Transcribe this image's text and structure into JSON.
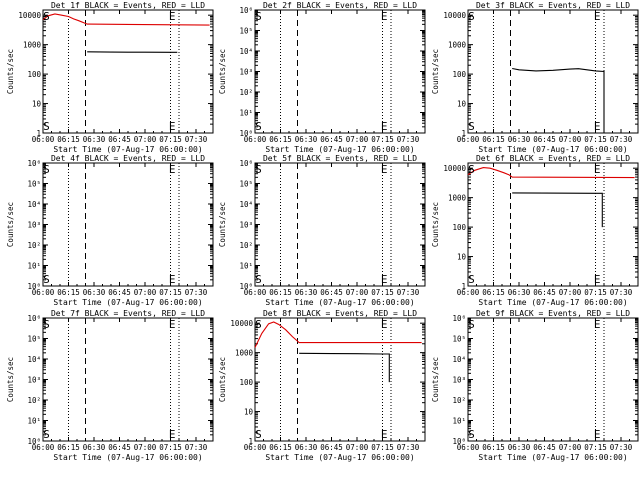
{
  "colors": {
    "events": "#000000",
    "lld": "#dd0000",
    "axis": "#000000",
    "background": "#ffffff"
  },
  "chart_data": [
    {
      "type": "line",
      "title": "Det 1f BLACK = Events, RED = LLD",
      "xlabel": "Start Time (07-Aug-17 06:00:00)",
      "ylabel": "Counts/sec",
      "xlim": [
        "06:00",
        "07:40"
      ],
      "x_ticks": [
        "06:00",
        "06:15",
        "06:30",
        "06:45",
        "07:00",
        "07:15",
        "07:30"
      ],
      "y_scale": "log",
      "ylim": [
        1,
        15000
      ],
      "y_ticks": [
        "1",
        "10",
        "100",
        "1000",
        "10000"
      ],
      "markers": [
        {
          "label": "S",
          "x": "06:02"
        },
        {
          "label": "E",
          "x": "07:16"
        }
      ],
      "series": [
        {
          "name": "LLD",
          "color": "red",
          "points": [
            [
              "06:00",
              7000
            ],
            [
              "06:03",
              9500
            ],
            [
              "06:07",
              11000
            ],
            [
              "06:11",
              10000
            ],
            [
              "06:15",
              9000
            ],
            [
              "06:18",
              7500
            ],
            [
              "06:21",
              6500
            ],
            [
              "06:24",
              5500
            ],
            [
              "06:26",
              5000
            ],
            [
              "07:38",
              4600
            ]
          ]
        },
        {
          "name": "Events",
          "color": "black",
          "points": [
            [
              "06:26",
              570
            ],
            [
              "06:40",
              560
            ],
            [
              "07:00",
              555
            ],
            [
              "07:15",
              550
            ],
            [
              "07:19",
              548
            ]
          ]
        }
      ]
    },
    {
      "type": "line",
      "title": "Det 2f BLACK = Events, RED = LLD",
      "xlabel": "Start Time (07-Aug-17 06:00:00)",
      "ylabel": "Counts/sec",
      "xlim": [
        "06:00",
        "07:40"
      ],
      "x_ticks": [
        "06:00",
        "06:15",
        "06:30",
        "06:45",
        "07:00",
        "07:15",
        "07:30"
      ],
      "y_scale": "log",
      "ylim": [
        1,
        1000000
      ],
      "y_ticks": [
        "10⁰",
        "10¹",
        "10²",
        "10³",
        "10⁴",
        "10⁵",
        "10⁶"
      ],
      "markers": [
        {
          "label": "S",
          "x": "06:02"
        },
        {
          "label": "E",
          "x": "07:16"
        }
      ],
      "series": []
    },
    {
      "type": "line",
      "title": "Det 3f BLACK = Events, RED = LLD",
      "xlabel": "Start Time (07-Aug-17 06:00:00)",
      "ylabel": "Counts/sec",
      "xlim": [
        "06:00",
        "07:40"
      ],
      "x_ticks": [
        "06:00",
        "06:15",
        "06:30",
        "06:45",
        "07:00",
        "07:15",
        "07:30"
      ],
      "y_scale": "log",
      "ylim": [
        1,
        15000
      ],
      "y_ticks": [
        "1",
        "10",
        "100",
        "1000",
        "10000"
      ],
      "markers": [
        {
          "label": "S",
          "x": "06:02"
        },
        {
          "label": "E",
          "x": "07:16"
        }
      ],
      "series": [
        {
          "name": "Events",
          "color": "black",
          "points": [
            [
              "06:26",
              155
            ],
            [
              "06:30",
              140
            ],
            [
              "06:40",
              128
            ],
            [
              "06:50",
              135
            ],
            [
              "07:00",
              148
            ],
            [
              "07:05",
              152
            ],
            [
              "07:10",
              140
            ],
            [
              "07:15",
              128
            ],
            [
              "07:20",
              122
            ],
            [
              "07:20",
              1
            ]
          ]
        }
      ]
    },
    {
      "type": "line",
      "title": "Det 4f BLACK = Events, RED = LLD",
      "xlabel": "Start Time (07-Aug-17 06:00:00)",
      "ylabel": "Counts/sec",
      "xlim": [
        "06:00",
        "07:40"
      ],
      "x_ticks": [
        "06:00",
        "06:15",
        "06:30",
        "06:45",
        "07:00",
        "07:15",
        "07:30"
      ],
      "y_scale": "log",
      "ylim": [
        1,
        1000000
      ],
      "y_ticks": [
        "10⁰",
        "10¹",
        "10²",
        "10³",
        "10⁴",
        "10⁵",
        "10⁶"
      ],
      "markers": [
        {
          "label": "S",
          "x": "06:02"
        },
        {
          "label": "E",
          "x": "07:16"
        }
      ],
      "series": []
    },
    {
      "type": "line",
      "title": "Det 5f BLACK = Events, RED = LLD",
      "xlabel": "Start Time (07-Aug-17 06:00:00)",
      "ylabel": "Counts/sec",
      "xlim": [
        "06:00",
        "07:40"
      ],
      "x_ticks": [
        "06:00",
        "06:15",
        "06:30",
        "06:45",
        "07:00",
        "07:15",
        "07:30"
      ],
      "y_scale": "log",
      "ylim": [
        1,
        1000000
      ],
      "y_ticks": [
        "10⁰",
        "10¹",
        "10²",
        "10³",
        "10⁴",
        "10⁵",
        "10⁶"
      ],
      "markers": [
        {
          "label": "S",
          "x": "06:02"
        },
        {
          "label": "E",
          "x": "07:16"
        }
      ],
      "series": []
    },
    {
      "type": "line",
      "title": "Det 6f BLACK = Events, RED = LLD",
      "xlabel": "Start Time (07-Aug-17 06:00:00)",
      "ylabel": "Counts/sec",
      "xlim": [
        "06:00",
        "07:40"
      ],
      "x_ticks": [
        "06:00",
        "06:15",
        "06:30",
        "06:45",
        "07:00",
        "07:15",
        "07:30"
      ],
      "y_scale": "log",
      "ylim": [
        1,
        15000
      ],
      "y_ticks": [
        "1",
        "10",
        "100",
        "1000",
        "10000"
      ],
      "markers": [
        {
          "label": "S",
          "x": "06:02"
        },
        {
          "label": "E",
          "x": "07:16"
        }
      ],
      "series": [
        {
          "name": "LLD",
          "color": "red",
          "points": [
            [
              "06:00",
              6000
            ],
            [
              "06:04",
              8500
            ],
            [
              "06:09",
              10500
            ],
            [
              "06:13",
              10000
            ],
            [
              "06:17",
              8500
            ],
            [
              "06:21",
              7000
            ],
            [
              "06:24",
              6000
            ],
            [
              "06:26",
              5000
            ],
            [
              "07:38",
              4800
            ]
          ]
        },
        {
          "name": "Events",
          "color": "black",
          "points": [
            [
              "06:26",
              1450
            ],
            [
              "06:45",
              1430
            ],
            [
              "07:00",
              1420
            ],
            [
              "07:15",
              1400
            ],
            [
              "07:19",
              1400
            ],
            [
              "07:19",
              100
            ]
          ]
        }
      ]
    },
    {
      "type": "line",
      "title": "Det 7f BLACK = Events, RED = LLD",
      "xlabel": "Start Time (07-Aug-17 06:00:00)",
      "ylabel": "Counts/sec",
      "xlim": [
        "06:00",
        "07:40"
      ],
      "x_ticks": [
        "06:00",
        "06:15",
        "06:30",
        "06:45",
        "07:00",
        "07:15",
        "07:30"
      ],
      "y_scale": "log",
      "ylim": [
        1,
        1000000
      ],
      "y_ticks": [
        "10⁰",
        "10¹",
        "10²",
        "10³",
        "10⁴",
        "10⁵",
        "10⁶"
      ],
      "markers": [
        {
          "label": "S",
          "x": "06:02"
        },
        {
          "label": "E",
          "x": "07:16"
        }
      ],
      "series": []
    },
    {
      "type": "line",
      "title": "Det 8f BLACK = Events, RED = LLD",
      "xlabel": "Start Time (07-Aug-17 06:00:00)",
      "ylabel": "Counts/sec",
      "xlim": [
        "06:00",
        "07:40"
      ],
      "x_ticks": [
        "06:00",
        "06:15",
        "06:30",
        "06:45",
        "07:00",
        "07:15",
        "07:30"
      ],
      "y_scale": "log",
      "ylim": [
        1,
        15000
      ],
      "y_ticks": [
        "1",
        "10",
        "100",
        "1000",
        "10000"
      ],
      "markers": [
        {
          "label": "S",
          "x": "06:02"
        },
        {
          "label": "E",
          "x": "07:16"
        }
      ],
      "series": [
        {
          "name": "LLD",
          "color": "red",
          "points": [
            [
              "06:00",
              1500
            ],
            [
              "06:04",
              4500
            ],
            [
              "06:08",
              9500
            ],
            [
              "06:11",
              11000
            ],
            [
              "06:14",
              9000
            ],
            [
              "06:18",
              6000
            ],
            [
              "06:22",
              3500
            ],
            [
              "06:26",
              2200
            ],
            [
              "07:38",
              2200
            ]
          ]
        },
        {
          "name": "Events",
          "color": "black",
          "points": [
            [
              "06:26",
              950
            ],
            [
              "06:45",
              930
            ],
            [
              "07:00",
              920
            ],
            [
              "07:15",
              900
            ],
            [
              "07:19",
              900
            ],
            [
              "07:19",
              100
            ]
          ]
        }
      ]
    },
    {
      "type": "line",
      "title": "Det 9f BLACK = Events, RED = LLD",
      "xlabel": "Start Time (07-Aug-17 06:00:00)",
      "ylabel": "Counts/sec",
      "xlim": [
        "06:00",
        "07:40"
      ],
      "x_ticks": [
        "06:00",
        "06:15",
        "06:30",
        "06:45",
        "07:00",
        "07:15",
        "07:30"
      ],
      "y_scale": "log",
      "ylim": [
        1,
        1000000
      ],
      "y_ticks": [
        "10⁰",
        "10¹",
        "10²",
        "10³",
        "10⁴",
        "10⁵",
        "10⁶"
      ],
      "markers": [
        {
          "label": "S",
          "x": "06:02"
        },
        {
          "label": "E",
          "x": "07:16"
        }
      ],
      "series": []
    }
  ]
}
